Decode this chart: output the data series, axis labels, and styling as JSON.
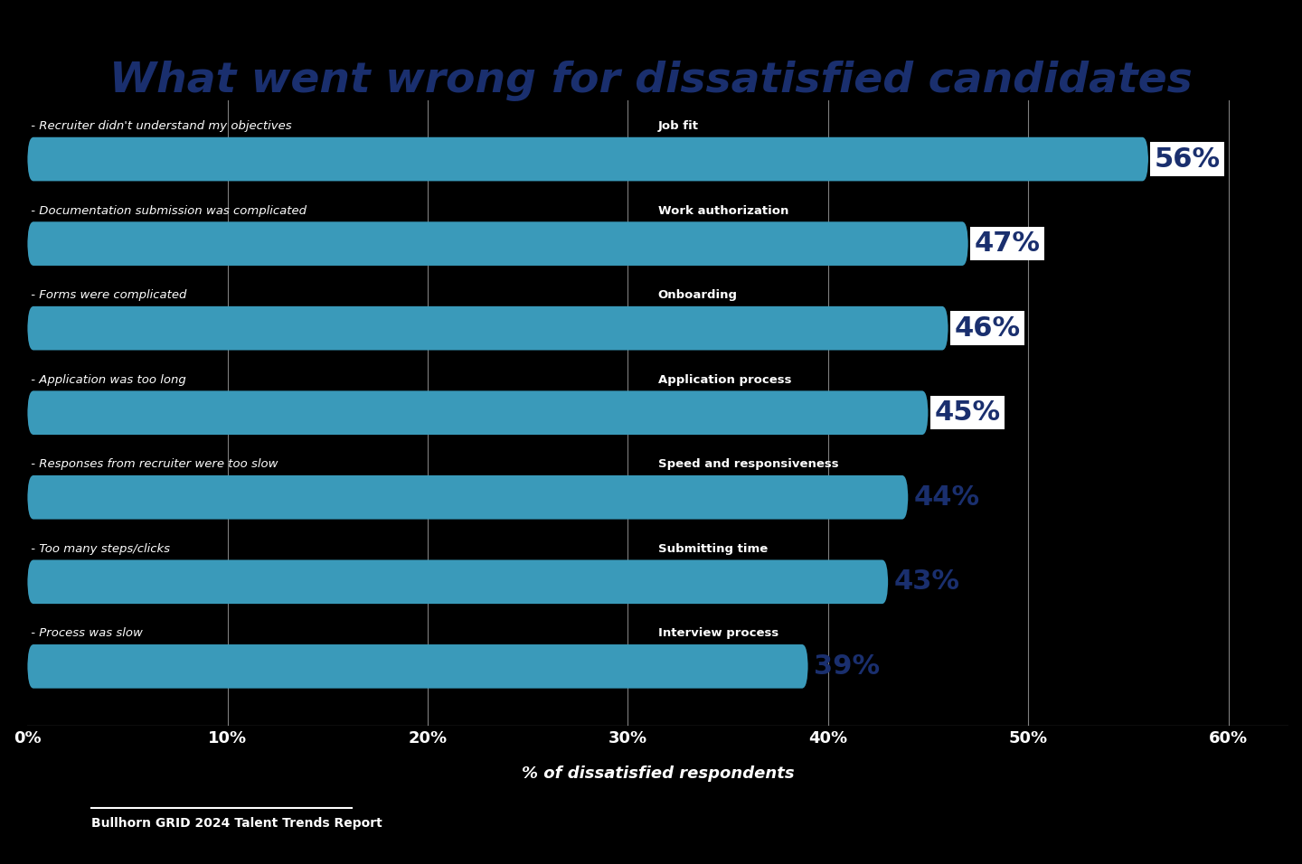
{
  "title": "What went wrong for dissatisfied candidates",
  "categories": [
    "Interview process - Process was slow",
    "Submitting time - Too many steps/clicks",
    "Speed and responsiveness - Responses from recruiter were too slow",
    "Application process - Application was too long",
    "Onboarding - Forms were complicated",
    "Work authorization - Documentation submission was complicated",
    "Job fit - Recruiter didn't understand my objectives"
  ],
  "category_bold": [
    "Interview process",
    "Submitting time",
    "Speed and responsiveness",
    "Application process",
    "Onboarding",
    "Work authorization",
    "Job fit"
  ],
  "category_italic": [
    " - Process was slow",
    " - Too many steps/clicks",
    " - Responses from recruiter were too slow",
    " - Application was too long",
    " - Forms were complicated",
    " - Documentation submission was complicated",
    " - Recruiter didn't understand my objectives"
  ],
  "values": [
    39,
    43,
    44,
    45,
    46,
    47,
    56
  ],
  "bar_color": "#3a9aba",
  "label_color_box": "#1a2f6e",
  "label_color_nobox": "#1a2f6e",
  "background_color": "#000000",
  "title_color": "#1a2f6e",
  "axis_label_color": "#ffffff",
  "tick_color": "#ffffff",
  "xlabel": "% of dissatisfied respondents",
  "source_text": "Bullhorn GRID 2024 Talent Trends Report",
  "xlim": [
    0,
    63
  ],
  "xticks": [
    0,
    10,
    20,
    30,
    40,
    50,
    60
  ],
  "xtick_labels": [
    "0%",
    "10%",
    "20%",
    "30%",
    "40%",
    "50%",
    "60%"
  ]
}
